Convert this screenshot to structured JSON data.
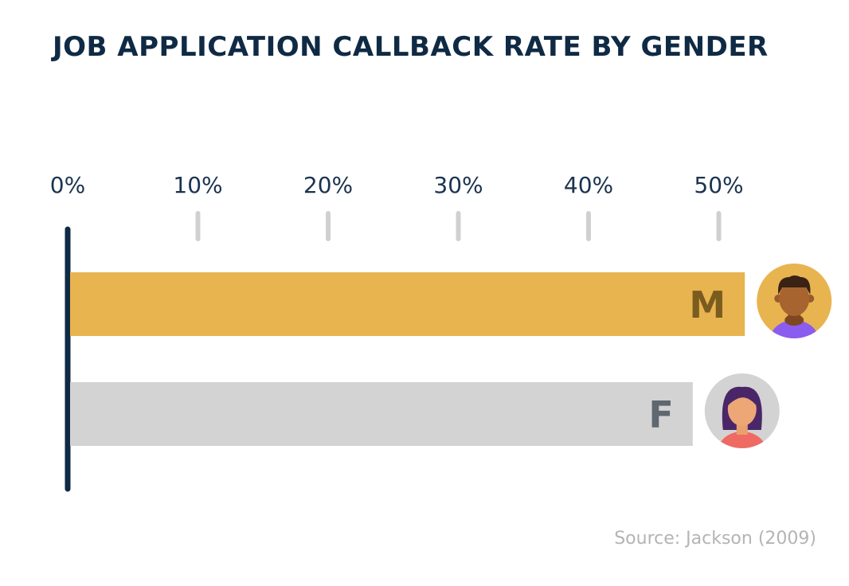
{
  "chart_data": {
    "type": "bar",
    "orientation": "horizontal",
    "title": "JOB APPLICATION CALLBACK RATE BY GENDER",
    "categories": [
      "M",
      "F"
    ],
    "values": [
      52,
      48
    ],
    "xlim": [
      0,
      55
    ],
    "ticks": [
      0,
      10,
      20,
      30,
      40,
      50
    ],
    "tick_labels": [
      "0%",
      "10%",
      "20%",
      "30%",
      "40%",
      "50%"
    ],
    "bar_colors": [
      "#e8b450",
      "#d3d3d3"
    ],
    "label_colors": [
      "#7a5c1e",
      "#5f6770"
    ],
    "avatar_bg_colors": [
      "#e8b450",
      "#d3d3d3"
    ],
    "avatar_icons": [
      "man-avatar-icon",
      "woman-avatar-icon"
    ],
    "source": "Source: Jackson (2009)"
  }
}
